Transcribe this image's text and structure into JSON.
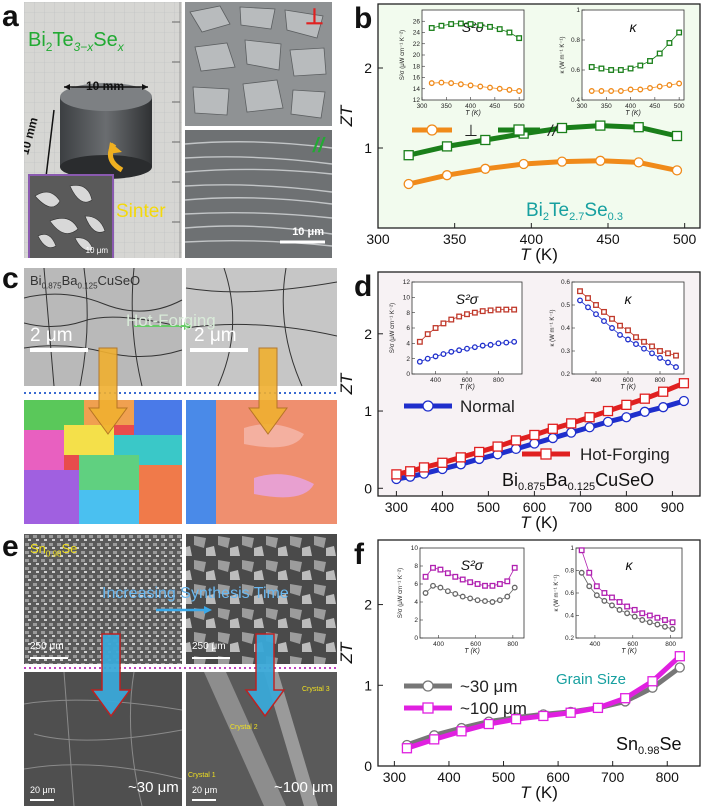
{
  "panels": {
    "a": {
      "label": "a",
      "formula_main": "Bi",
      "formula_sub1": "2",
      "formula_te": "Te",
      "formula_sub2": "3−x",
      "formula_se": "Se",
      "formula_sub3": "x",
      "dim_top": "10 mm",
      "dim_side": "10 mm",
      "sinter": "Sinter",
      "inset_scale": "10 μm",
      "sem_scale": "10 μm",
      "perp_mark": "⊥",
      "par_mark": "//"
    },
    "c": {
      "label": "c",
      "title": "Bi",
      "title_sub1": "0.875",
      "title_ba": "Ba",
      "title_sub2": "0.125",
      "title_rest": "CuSeO",
      "hot_forging": "Hot-Forging",
      "scale1": "2 μm",
      "scale2": "2 μm"
    },
    "e": {
      "label": "e",
      "title": "Sn",
      "title_sub": "0.98",
      "title_rest": "Se",
      "increasing": "Increasing Synthesis Time",
      "scale_tl": "250 μm",
      "scale_tr": "250 μm",
      "scale_bl": "20 μm",
      "scale_br": "20 μm",
      "size1": "~30 μm",
      "size2": "~100 μm",
      "crystal1": "Crystal 1",
      "crystal2": "Crystal 2",
      "crystal3": "Crystal 3"
    }
  },
  "chart_data": [
    {
      "id": "b",
      "type": "line",
      "panel_label": "b",
      "xlabel": "T (K)",
      "ylabel": "ZT",
      "xlim": [
        300,
        510
      ],
      "ylim": [
        0,
        2.8
      ],
      "xticks": [
        300,
        350,
        400,
        450,
        500
      ],
      "yticks": [
        1,
        2
      ],
      "legend": [
        "⊥",
        "//"
      ],
      "series": [
        {
          "name": "⊥",
          "color": "#f08a1a",
          "marker": "circle",
          "x": [
            320,
            345,
            370,
            395,
            420,
            445,
            470,
            495
          ],
          "y": [
            0.55,
            0.66,
            0.74,
            0.8,
            0.83,
            0.84,
            0.82,
            0.72
          ]
        },
        {
          "name": "//",
          "color": "#1a7f1a",
          "marker": "square",
          "x": [
            320,
            345,
            370,
            395,
            420,
            445,
            470,
            495
          ],
          "y": [
            0.91,
            1.02,
            1.1,
            1.18,
            1.25,
            1.28,
            1.26,
            1.15
          ]
        }
      ],
      "annotation": {
        "main": "Bi",
        "s1": "2",
        "te": "Te",
        "s2": "2.7",
        "se": "Se",
        "s3": "0.3"
      },
      "insets": [
        {
          "title": "S²σ",
          "ylabel": "S²σ (μW cm⁻¹ K⁻²)",
          "xlabel": "T (K)",
          "xlim": [
            300,
            510
          ],
          "ylim": [
            12,
            28
          ],
          "xticks": [
            300,
            350,
            400,
            450,
            500
          ],
          "yticks": [
            12,
            14,
            16,
            18,
            20,
            22,
            24,
            26
          ],
          "series": [
            {
              "color": "#1a7f1a",
              "marker": "square",
              "x": [
                320,
                340,
                360,
                380,
                400,
                420,
                440,
                460,
                480,
                500
              ],
              "y": [
                24.8,
                25.2,
                25.5,
                25.6,
                25.5,
                25.3,
                25.0,
                24.6,
                24.0,
                23.0
              ]
            },
            {
              "color": "#f08a1a",
              "marker": "circle",
              "x": [
                320,
                340,
                360,
                380,
                400,
                420,
                440,
                460,
                480,
                500
              ],
              "y": [
                15.0,
                15.1,
                15.0,
                14.8,
                14.6,
                14.4,
                14.2,
                14.0,
                13.8,
                13.6
              ]
            }
          ]
        },
        {
          "title": "κ",
          "ylabel": "κ (W m⁻¹ K⁻¹)",
          "xlabel": "T (K)",
          "xlim": [
            300,
            510
          ],
          "ylim": [
            0.4,
            1.0
          ],
          "xticks": [
            300,
            350,
            400,
            450,
            500
          ],
          "yticks": [
            0.4,
            0.6,
            0.8,
            1.0
          ],
          "series": [
            {
              "color": "#1a7f1a",
              "marker": "square",
              "x": [
                320,
                340,
                360,
                380,
                400,
                420,
                440,
                460,
                480,
                500
              ],
              "y": [
                0.62,
                0.61,
                0.6,
                0.6,
                0.61,
                0.63,
                0.66,
                0.71,
                0.78,
                0.85
              ]
            },
            {
              "color": "#f08a1a",
              "marker": "circle",
              "x": [
                320,
                340,
                360,
                380,
                400,
                420,
                440,
                460,
                480,
                500
              ],
              "y": [
                0.46,
                0.46,
                0.46,
                0.46,
                0.47,
                0.47,
                0.48,
                0.49,
                0.5,
                0.51
              ]
            }
          ]
        }
      ]
    },
    {
      "id": "d",
      "type": "line",
      "panel_label": "d",
      "xlabel": "T (K)",
      "ylabel": "ZT",
      "xlim": [
        260,
        960
      ],
      "ylim": [
        -0.1,
        2.8
      ],
      "xticks": [
        300,
        400,
        500,
        600,
        700,
        800,
        900
      ],
      "yticks": [
        0,
        1,
        2
      ],
      "legend": [
        "Normal",
        "Hot-Forging"
      ],
      "series": [
        {
          "name": "Normal",
          "color": "#1f2fcc",
          "marker": "circle",
          "x": [
            300,
            330,
            360,
            400,
            440,
            480,
            520,
            560,
            600,
            640,
            680,
            720,
            760,
            800,
            840,
            880,
            925
          ],
          "y": [
            0.12,
            0.15,
            0.19,
            0.25,
            0.31,
            0.38,
            0.44,
            0.51,
            0.58,
            0.65,
            0.72,
            0.79,
            0.86,
            0.92,
            0.99,
            1.05,
            1.13
          ]
        },
        {
          "name": "Hot-Forging",
          "color": "#e02020",
          "marker": "square",
          "x": [
            300,
            330,
            360,
            400,
            440,
            480,
            520,
            560,
            600,
            640,
            680,
            720,
            760,
            800,
            840,
            880,
            925
          ],
          "y": [
            0.18,
            0.22,
            0.27,
            0.33,
            0.4,
            0.47,
            0.54,
            0.62,
            0.69,
            0.77,
            0.84,
            0.92,
            1.0,
            1.08,
            1.16,
            1.25,
            1.36
          ]
        }
      ],
      "annotation": {
        "main": "Bi",
        "s1": "0.875",
        "ba": "Ba",
        "s2": "0.125",
        "rest": "CuSeO"
      },
      "insets": [
        {
          "title": "S²σ",
          "ylabel": "S²σ (μW cm⁻¹ K⁻²)",
          "xlabel": "T (K)",
          "xlim": [
            250,
            950
          ],
          "ylim": [
            0,
            12
          ],
          "xticks": [
            400,
            600,
            800
          ],
          "yticks": [
            0,
            2,
            4,
            6,
            8,
            10,
            12
          ],
          "series": [
            {
              "color": "#c0392b",
              "marker": "square",
              "x": [
                300,
                350,
                400,
                450,
                500,
                550,
                600,
                650,
                700,
                750,
                800,
                850,
                900
              ],
              "y": [
                4.2,
                5.2,
                6.0,
                6.6,
                7.1,
                7.5,
                7.8,
                8.0,
                8.2,
                8.3,
                8.4,
                8.4,
                8.4
              ]
            },
            {
              "color": "#1f2fcc",
              "marker": "circle",
              "x": [
                300,
                350,
                400,
                450,
                500,
                550,
                600,
                650,
                700,
                750,
                800,
                850,
                900
              ],
              "y": [
                1.6,
                2.0,
                2.3,
                2.6,
                2.9,
                3.1,
                3.3,
                3.5,
                3.7,
                3.8,
                4.0,
                4.1,
                4.2
              ]
            }
          ]
        },
        {
          "title": "κ",
          "ylabel": "κ (W m⁻¹ K⁻¹)",
          "xlabel": "T (K)",
          "xlim": [
            250,
            950
          ],
          "ylim": [
            0.2,
            0.6
          ],
          "xticks": [
            400,
            600,
            800
          ],
          "yticks": [
            0.2,
            0.3,
            0.4,
            0.5,
            0.6
          ],
          "series": [
            {
              "color": "#c0392b",
              "marker": "square",
              "x": [
                300,
                350,
                400,
                450,
                500,
                550,
                600,
                650,
                700,
                750,
                800,
                850,
                900
              ],
              "y": [
                0.56,
                0.53,
                0.5,
                0.47,
                0.44,
                0.41,
                0.39,
                0.36,
                0.34,
                0.32,
                0.3,
                0.29,
                0.28
              ]
            },
            {
              "color": "#1f2fcc",
              "marker": "circle",
              "x": [
                300,
                350,
                400,
                450,
                500,
                550,
                600,
                650,
                700,
                750,
                800,
                850,
                900
              ],
              "y": [
                0.52,
                0.49,
                0.46,
                0.43,
                0.4,
                0.37,
                0.35,
                0.33,
                0.31,
                0.29,
                0.27,
                0.25,
                0.23
              ]
            }
          ]
        }
      ]
    },
    {
      "id": "f",
      "type": "line",
      "panel_label": "f",
      "xlabel": "T (K)",
      "ylabel": "ZT",
      "xlim": [
        270,
        860
      ],
      "ylim": [
        0,
        2.8
      ],
      "xticks": [
        300,
        400,
        500,
        600,
        700,
        800
      ],
      "yticks": [
        0,
        1,
        2
      ],
      "legend": [
        "~30 μm",
        "~100 μm"
      ],
      "legend_title": "Grain Size",
      "series": [
        {
          "name": "~30 μm",
          "color": "#777777",
          "marker": "circle",
          "x": [
            323,
            373,
            423,
            473,
            523,
            573,
            623,
            673,
            723,
            773,
            823
          ],
          "y": [
            0.26,
            0.38,
            0.47,
            0.55,
            0.6,
            0.64,
            0.67,
            0.72,
            0.8,
            0.97,
            1.22
          ]
        },
        {
          "name": "~100 μm",
          "color": "#e020e0",
          "marker": "square",
          "x": [
            323,
            373,
            423,
            473,
            523,
            573,
            623,
            673,
            723,
            773,
            823
          ],
          "y": [
            0.22,
            0.33,
            0.43,
            0.52,
            0.58,
            0.62,
            0.66,
            0.72,
            0.84,
            1.05,
            1.36
          ]
        }
      ],
      "annotation": {
        "main": "Sn",
        "s1": "0.98",
        "rest": "Se"
      },
      "insets": [
        {
          "title": "S²σ",
          "ylabel": "S²σ (μW cm⁻¹ K⁻²)",
          "xlabel": "T (K)",
          "xlim": [
            300,
            860
          ],
          "ylim": [
            0,
            10
          ],
          "xticks": [
            400,
            600,
            800
          ],
          "yticks": [
            0,
            2,
            4,
            6,
            8,
            10
          ],
          "series": [
            {
              "color": "#b020b0",
              "marker": "square",
              "x": [
                330,
                370,
                410,
                450,
                490,
                530,
                570,
                610,
                650,
                690,
                730,
                770,
                810
              ],
              "y": [
                6.8,
                7.8,
                7.6,
                7.2,
                6.8,
                6.5,
                6.2,
                6.0,
                5.8,
                5.8,
                6.0,
                6.3,
                7.8
              ]
            },
            {
              "color": "#666666",
              "marker": "circle",
              "x": [
                330,
                370,
                410,
                450,
                490,
                530,
                570,
                610,
                650,
                690,
                730,
                770,
                810
              ],
              "y": [
                5.0,
                5.8,
                5.6,
                5.2,
                4.9,
                4.6,
                4.4,
                4.2,
                4.1,
                4.0,
                4.2,
                4.6,
                5.6
              ]
            }
          ]
        },
        {
          "title": "κ",
          "ylabel": "κ (W m⁻¹ K⁻¹)",
          "xlabel": "T (K)",
          "xlim": [
            300,
            860
          ],
          "ylim": [
            0.2,
            1.0
          ],
          "xticks": [
            400,
            600,
            800
          ],
          "yticks": [
            0.2,
            0.4,
            0.6,
            0.8,
            1.0
          ],
          "series": [
            {
              "color": "#b020b0",
              "marker": "square",
              "x": [
                330,
                370,
                410,
                450,
                490,
                530,
                570,
                610,
                650,
                690,
                730,
                770,
                810
              ],
              "y": [
                0.98,
                0.78,
                0.66,
                0.6,
                0.56,
                0.52,
                0.48,
                0.45,
                0.42,
                0.4,
                0.38,
                0.36,
                0.34
              ]
            },
            {
              "color": "#666666",
              "marker": "circle",
              "x": [
                330,
                370,
                410,
                450,
                490,
                530,
                570,
                610,
                650,
                690,
                730,
                770,
                810
              ],
              "y": [
                0.78,
                0.66,
                0.58,
                0.53,
                0.49,
                0.45,
                0.42,
                0.39,
                0.36,
                0.34,
                0.32,
                0.3,
                0.28
              ]
            }
          ]
        }
      ]
    }
  ]
}
